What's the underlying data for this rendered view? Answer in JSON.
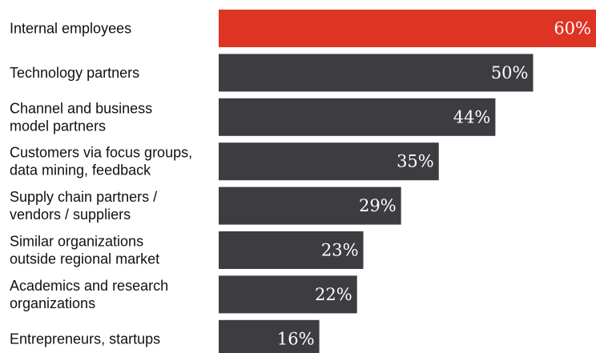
{
  "chart_data": {
    "type": "bar",
    "orientation": "horizontal",
    "categories": [
      [
        "Internal employees"
      ],
      [
        "Technology partners"
      ],
      [
        "Channel and business",
        "model partners"
      ],
      [
        "Customers via focus groups,",
        "data mining, feedback"
      ],
      [
        "Supply chain partners /",
        "vendors / suppliers"
      ],
      [
        "Similar organizations",
        "outside regional market"
      ],
      [
        "Academics and research",
        "organizations"
      ],
      [
        "Entrepreneurs, startups"
      ]
    ],
    "values": [
      60,
      50,
      44,
      35,
      29,
      23,
      22,
      16
    ],
    "value_labels": [
      "60%",
      "50%",
      "44%",
      "35%",
      "29%",
      "23%",
      "22%",
      "16%"
    ],
    "xlim": [
      0,
      60
    ],
    "grid": false,
    "legend": "none",
    "colors": {
      "highlight": "#dd3424",
      "bar": "#3d3c41",
      "value_text": "#ffffff",
      "label_text": "#111111"
    },
    "highlight_index": 0
  }
}
